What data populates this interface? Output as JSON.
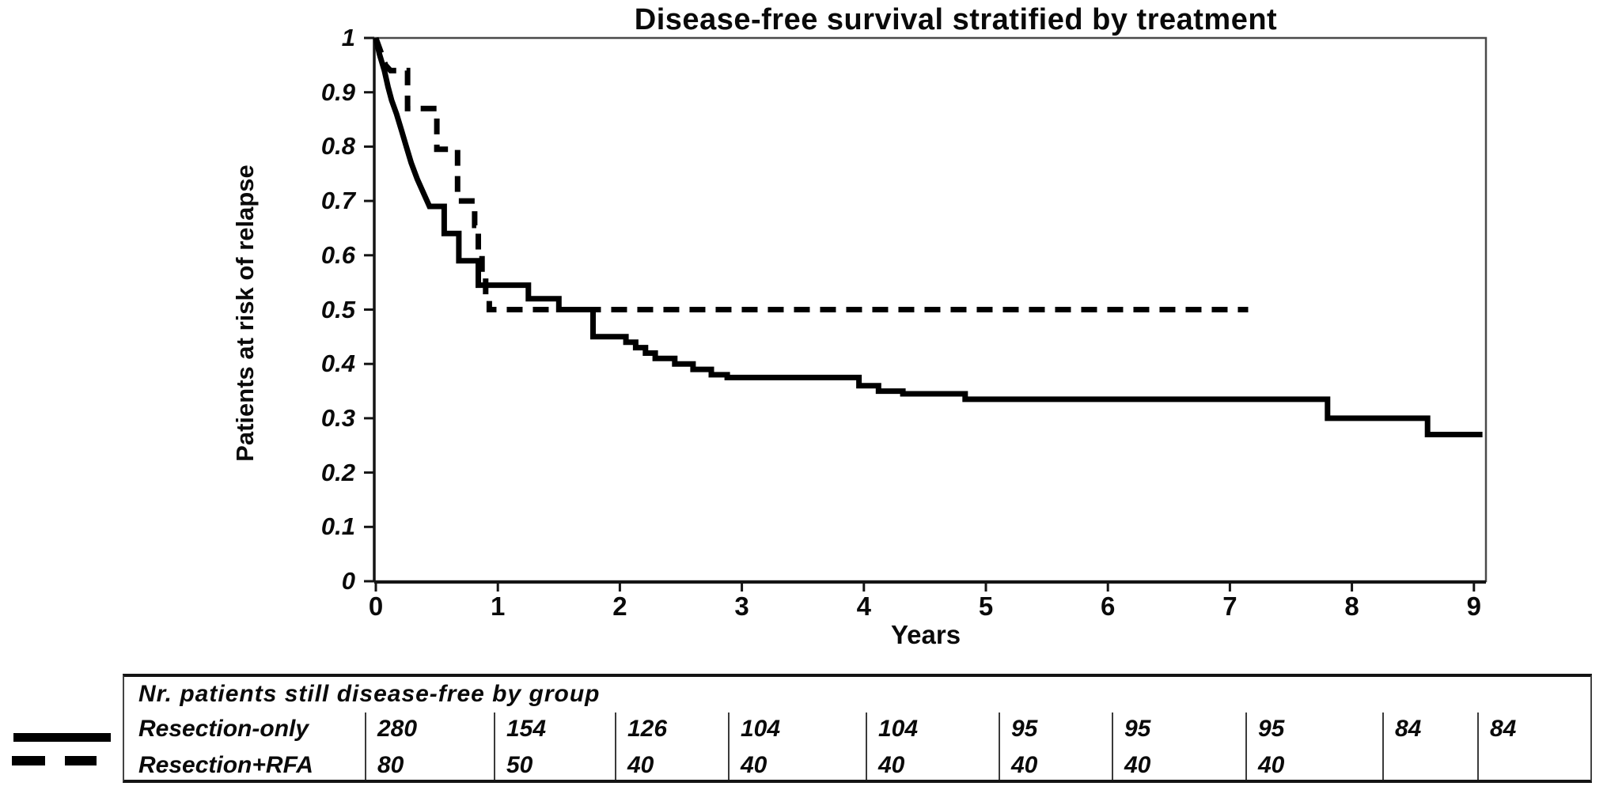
{
  "title": "Disease-free survival stratified by treatment",
  "y_axis": {
    "label": "Patients at risk of relapse",
    "ticks": [
      "1",
      "0.9",
      "0.8",
      "0.7",
      "0.6",
      "0.5",
      "0.4",
      "0.3",
      "0.2",
      "0.1",
      "0"
    ]
  },
  "x_axis": {
    "label": "Years",
    "ticks": [
      "0",
      "1",
      "2",
      "3",
      "4",
      "5",
      "6",
      "7",
      "8",
      "9"
    ]
  },
  "risk_table": {
    "header": "Nr. patients still disease-free by group",
    "rows": [
      {
        "label": "Resection-only",
        "line": "solid",
        "values": [
          "280",
          "154",
          "126",
          "104",
          "104",
          "95",
          "95",
          "95",
          "84",
          "84"
        ]
      },
      {
        "label": "Resection+RFA",
        "line": "dashed",
        "values": [
          "80",
          "50",
          "40",
          "40",
          "40",
          "40",
          "40",
          "40",
          "",
          ""
        ]
      }
    ]
  },
  "colors": {
    "curve": "#000000",
    "frame": "#4a4a4a",
    "axis": "#141414",
    "text": "#0a0a0a",
    "background": "#ffffff"
  },
  "chart_data": {
    "type": "line",
    "subtype": "kaplan-meier-step",
    "title": "Disease-free survival stratified by treatment",
    "xlabel": "Years",
    "ylabel": "Patients at risk of relapse",
    "xlim": [
      0,
      9
    ],
    "ylim": [
      0,
      1
    ],
    "grid": false,
    "legend_position": "bottom-left",
    "series": [
      {
        "name": "Resection-only",
        "line": "solid",
        "smooth_until": 0.45,
        "steps": [
          [
            0,
            1.0
          ],
          [
            0.03,
            0.97
          ],
          [
            0.07,
            0.94
          ],
          [
            0.1,
            0.91
          ],
          [
            0.13,
            0.885
          ],
          [
            0.17,
            0.86
          ],
          [
            0.21,
            0.83
          ],
          [
            0.25,
            0.8
          ],
          [
            0.29,
            0.77
          ],
          [
            0.34,
            0.74
          ],
          [
            0.39,
            0.715
          ],
          [
            0.44,
            0.69
          ],
          [
            0.56,
            0.64
          ],
          [
            0.68,
            0.59
          ],
          [
            0.84,
            0.545
          ],
          [
            1.25,
            0.52
          ],
          [
            1.5,
            0.5
          ],
          [
            1.78,
            0.45
          ],
          [
            2.05,
            0.44
          ],
          [
            2.13,
            0.43
          ],
          [
            2.21,
            0.42
          ],
          [
            2.29,
            0.41
          ],
          [
            2.45,
            0.4
          ],
          [
            2.6,
            0.39
          ],
          [
            2.75,
            0.38
          ],
          [
            2.88,
            0.375
          ],
          [
            3.96,
            0.36
          ],
          [
            4.12,
            0.35
          ],
          [
            4.32,
            0.345
          ],
          [
            4.83,
            0.335
          ],
          [
            7.8,
            0.3
          ],
          [
            8.62,
            0.27
          ],
          [
            9.07,
            0.27
          ]
        ]
      },
      {
        "name": "Resection+RFA",
        "line": "dashed",
        "smooth_until": 0.13,
        "steps": [
          [
            0,
            1.0
          ],
          [
            0.04,
            0.975
          ],
          [
            0.08,
            0.95
          ],
          [
            0.12,
            0.94
          ],
          [
            0.26,
            0.87
          ],
          [
            0.5,
            0.795
          ],
          [
            0.67,
            0.7
          ],
          [
            0.81,
            0.655
          ],
          [
            0.84,
            0.61
          ],
          [
            0.87,
            0.56
          ],
          [
            0.9,
            0.525
          ],
          [
            0.93,
            0.5
          ],
          [
            7.15,
            0.5
          ]
        ]
      }
    ]
  }
}
